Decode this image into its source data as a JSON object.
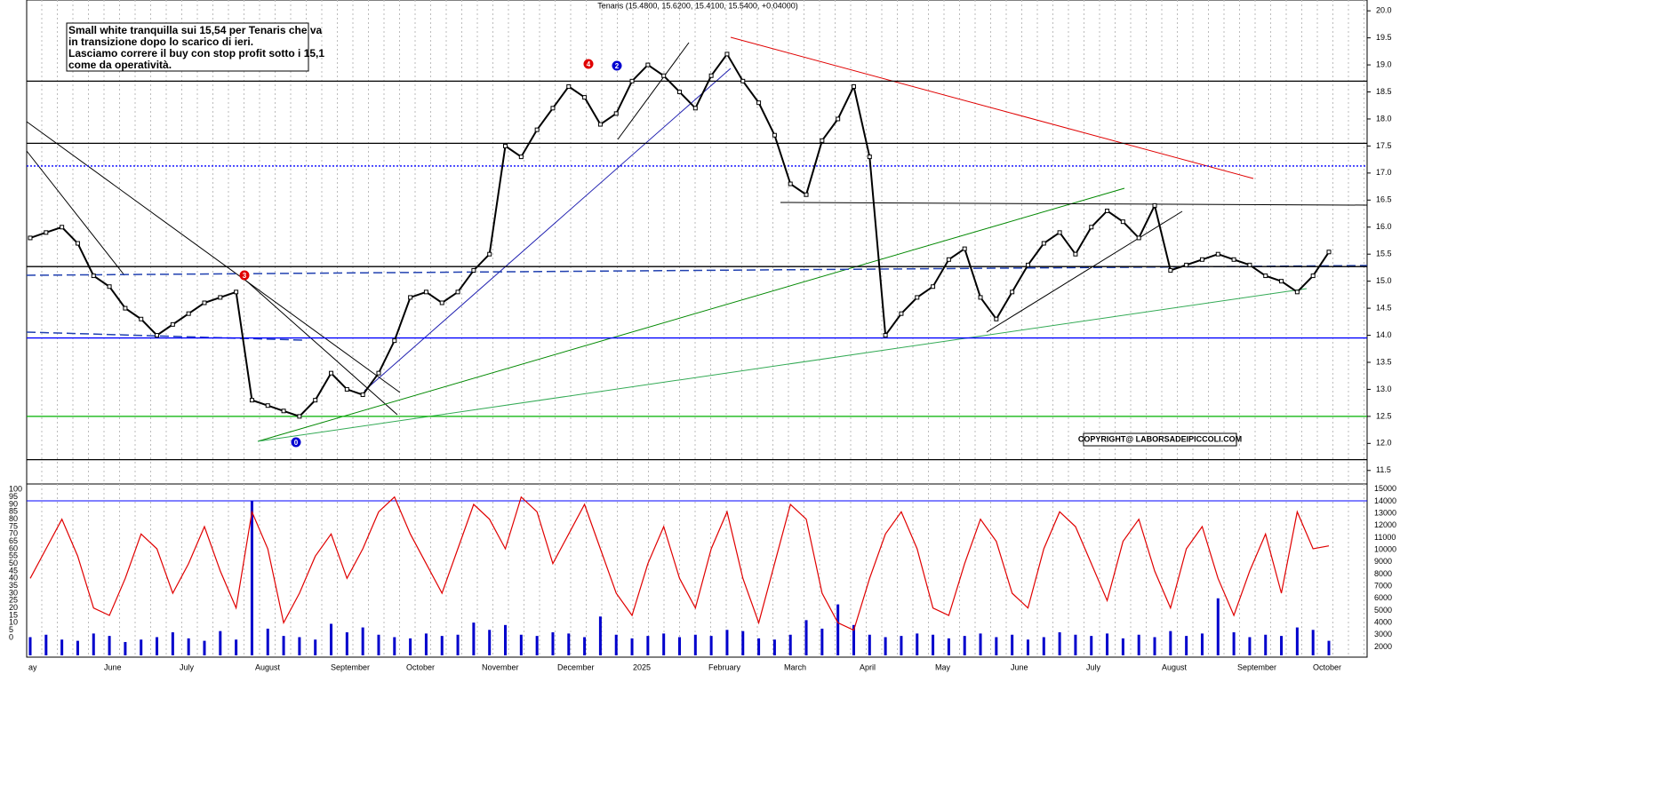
{
  "chart_data": {
    "type": "line",
    "title": "Tenaris (15.4800, 15.6200, 15.4100, 15.5400, +0.04000)",
    "annotation": [
      "Small white tranquilla sui 15,54 per Tenaris che va",
      "in transizione dopo lo scarico di ieri.",
      "Lasciamo correre il buy con stop profit sotto i 15,1",
      "come da operatività."
    ],
    "copyright": "COPYRIGHT@ LABORSADEIPICCOLI.COM",
    "markers": [
      {
        "label": "4",
        "color": "#e00000"
      },
      {
        "label": "2",
        "color": "#0000d0"
      },
      {
        "label": "3",
        "color": "#e00000"
      },
      {
        "label": "0",
        "color": "#0000d0"
      }
    ],
    "x_labels": [
      "ay",
      "June",
      "July",
      "August",
      "September",
      "October",
      "November",
      "December",
      "2025",
      "February",
      "March",
      "April",
      "May",
      "June",
      "July",
      "August",
      "September",
      "October"
    ],
    "series": [
      {
        "name": "Tenaris",
        "color": "#000000",
        "values": [
          15.8,
          15.9,
          16.0,
          15.7,
          15.1,
          14.9,
          14.5,
          14.3,
          14.0,
          14.2,
          14.4,
          14.6,
          14.7,
          14.8,
          12.8,
          12.7,
          12.6,
          12.5,
          12.8,
          13.3,
          13.0,
          12.9,
          13.3,
          13.9,
          14.7,
          14.8,
          14.6,
          14.8,
          15.2,
          15.5,
          17.5,
          17.3,
          17.8,
          18.2,
          18.6,
          18.4,
          17.9,
          18.1,
          18.7,
          19.0,
          18.8,
          18.5,
          18.2,
          18.8,
          19.2,
          18.7,
          18.3,
          17.7,
          16.8,
          16.6,
          17.6,
          18.0,
          18.6,
          17.3,
          14.0,
          14.4,
          14.7,
          14.9,
          15.4,
          15.6,
          14.7,
          14.3,
          14.8,
          15.3,
          15.7,
          15.9,
          15.5,
          16.0,
          16.3,
          16.1,
          15.8,
          16.4,
          15.2,
          15.3,
          15.4,
          15.5,
          15.4,
          15.3,
          15.1,
          15.0,
          14.8,
          15.1,
          15.54
        ]
      }
    ],
    "levels": [
      {
        "value": 18.7,
        "color": "#000000"
      },
      {
        "value": 17.55,
        "color": "#000000"
      },
      {
        "value": 17.13,
        "color": "#0000ff"
      },
      {
        "value": 15.27,
        "color": "#000000"
      },
      {
        "value": 13.95,
        "color": "#0000ff"
      },
      {
        "value": 12.5,
        "color": "#00b000"
      },
      {
        "value": 11.7,
        "color": "#000000"
      }
    ],
    "ylim": [
      11.25,
      20.2
    ],
    "yticks": [
      {
        "value": 11.5,
        "label": "11.5"
      },
      {
        "value": 12,
        "label": "12.0"
      },
      {
        "value": 12.5,
        "label": "12.5"
      },
      {
        "value": 13,
        "label": "13.0"
      },
      {
        "value": 13.5,
        "label": "13.5"
      },
      {
        "value": 14,
        "label": "14.0"
      },
      {
        "value": 14.5,
        "label": "14.5"
      },
      {
        "value": 15,
        "label": "15.0"
      },
      {
        "value": 15.5,
        "label": "15.5"
      },
      {
        "value": 16,
        "label": "16.0"
      },
      {
        "value": 16.5,
        "label": "16.5"
      },
      {
        "value": 17,
        "label": "17.0"
      },
      {
        "value": 17.5,
        "label": "17.5"
      },
      {
        "value": 18,
        "label": "18.0"
      },
      {
        "value": 18.5,
        "label": "18.5"
      },
      {
        "value": 19,
        "label": "19.0"
      },
      {
        "value": 19.5,
        "label": "19.5"
      },
      {
        "value": 20,
        "label": "20.0"
      }
    ],
    "oscillator": {
      "color": "#e00000",
      "values": [
        40,
        60,
        80,
        55,
        20,
        15,
        40,
        70,
        60,
        30,
        50,
        75,
        45,
        20,
        85,
        60,
        10,
        30,
        55,
        70,
        40,
        60,
        85,
        95,
        70,
        50,
        30,
        60,
        90,
        80,
        60,
        95,
        85,
        50,
        70,
        90,
        60,
        30,
        15,
        50,
        75,
        40,
        20,
        60,
        85,
        40,
        10,
        50,
        90,
        80,
        30,
        10,
        5,
        40,
        70,
        85,
        60,
        20,
        15,
        50,
        80,
        65,
        30,
        20,
        60,
        85,
        75,
        50,
        25,
        65,
        80,
        45,
        20,
        60,
        75,
        40,
        15,
        45,
        70,
        30,
        85,
        60,
        62
      ],
      "ylim": [
        -12,
        102
      ],
      "yticks": [
        0,
        5,
        10,
        15,
        20,
        25,
        30,
        35,
        40,
        45,
        50,
        55,
        60,
        65,
        70,
        75,
        80,
        85,
        90,
        95,
        100
      ]
    },
    "volume": {
      "color": "#0000cc",
      "values": [
        2800,
        3000,
        2600,
        2500,
        3100,
        2900,
        2400,
        2600,
        2800,
        3200,
        2700,
        2500,
        3300,
        2600,
        14000,
        3500,
        2900,
        2800,
        2600,
        3900,
        3200,
        3600,
        3000,
        2800,
        2700,
        3100,
        2900,
        3000,
        4000,
        3400,
        3800,
        3000,
        2900,
        3200,
        3100,
        2800,
        4500,
        3000,
        2700,
        2900,
        3100,
        2800,
        3000,
        2900,
        3400,
        3300,
        2700,
        2600,
        3000,
        4200,
        3500,
        5500,
        3800,
        3000,
        2800,
        2900,
        3100,
        3000,
        2700,
        2900,
        3100,
        2800,
        3000,
        2600,
        2800,
        3200,
        3000,
        2900,
        3100,
        2700,
        3000,
        2800,
        3300,
        2900,
        3100,
        6000,
        3200,
        2800,
        3000,
        2900,
        3600,
        3400,
        2500
      ],
      "y2lim": [
        1300,
        15200
      ],
      "y2ticks": [
        2000,
        3000,
        4000,
        5000,
        6000,
        7000,
        8000,
        9000,
        10000,
        11000,
        12000,
        13000,
        14000,
        15000
      ]
    }
  }
}
